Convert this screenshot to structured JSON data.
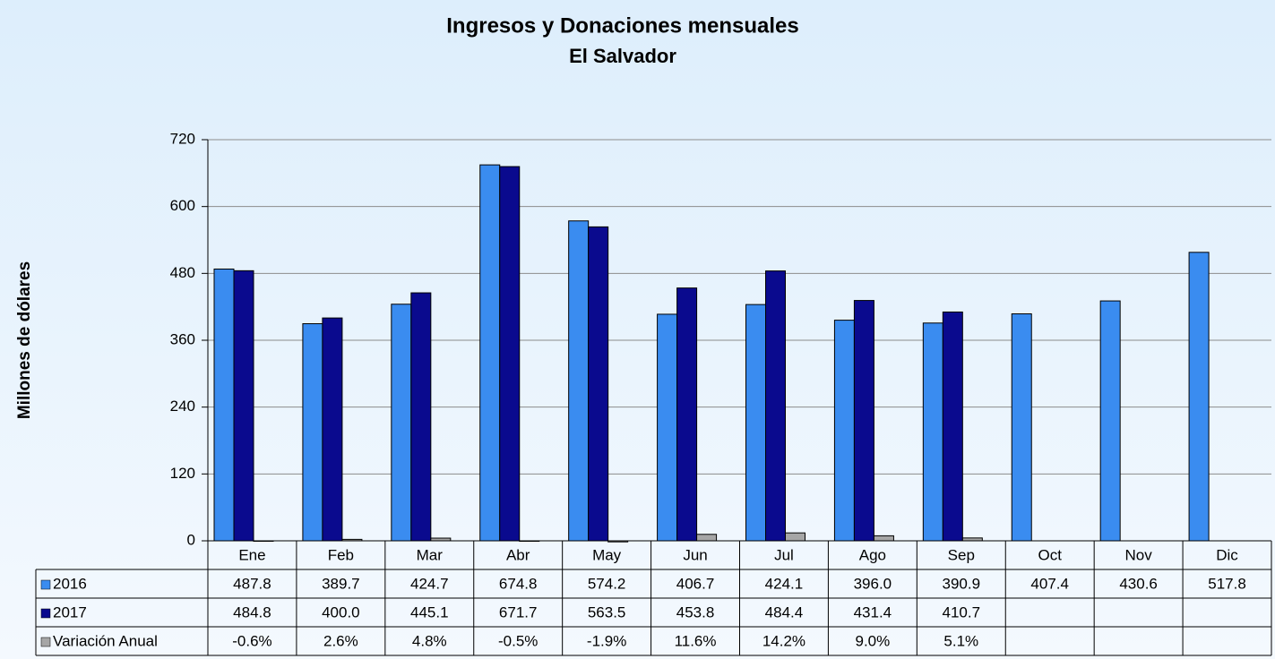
{
  "chart_data": {
    "type": "bar",
    "title": "Ingresos y Donaciones mensuales",
    "subtitle": "El Salvador",
    "y_label": "Millones de dólares",
    "categories": [
      "Ene",
      "Feb",
      "Mar",
      "Abr",
      "May",
      "Jun",
      "Jul",
      "Ago",
      "Sep",
      "Oct",
      "Nov",
      "Dic"
    ],
    "series": [
      {
        "name": "2016",
        "color": "#3a8cf0",
        "values": [
          487.8,
          389.7,
          424.7,
          674.8,
          574.2,
          406.7,
          424.1,
          396.0,
          390.9,
          407.4,
          430.6,
          517.8
        ],
        "value_labels": [
          "487.8",
          "389.7",
          "424.7",
          "674.8",
          "574.2",
          "406.7",
          "424.1",
          "396.0",
          "390.9",
          "407.4",
          "430.6",
          "517.8"
        ]
      },
      {
        "name": "2017",
        "color": "#0a0a8e",
        "values": [
          484.8,
          400.0,
          445.1,
          671.7,
          563.5,
          453.8,
          484.4,
          431.4,
          410.7,
          null,
          null,
          null
        ],
        "value_labels": [
          "484.8",
          "400.0",
          "445.1",
          "671.7",
          "563.5",
          "453.8",
          "484.4",
          "431.4",
          "410.7",
          null,
          null,
          null
        ]
      },
      {
        "name": "Variación Anual",
        "color": "#a6a6a6",
        "values": [
          -0.6,
          2.6,
          4.8,
          -0.5,
          -1.9,
          11.6,
          14.2,
          9.0,
          5.1,
          null,
          null,
          null
        ],
        "value_labels": [
          "-0.6%",
          "2.6%",
          "4.8%",
          "-0.5%",
          "-1.9%",
          "11.6%",
          "14.2%",
          "9.0%",
          "5.1%",
          null,
          null,
          null
        ]
      }
    ],
    "ylim": [
      0,
      720
    ],
    "yticks": [
      0,
      120,
      240,
      360,
      480,
      600,
      720
    ],
    "grid": true
  }
}
